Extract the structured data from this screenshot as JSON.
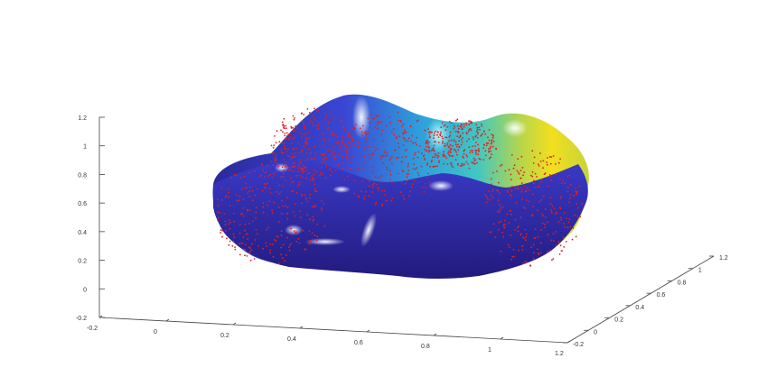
{
  "chart_data": {
    "type": "surface3d",
    "title": "",
    "xlabel": "",
    "ylabel": "",
    "zlabel": "",
    "grid": false,
    "x_ticks": [
      "-0.2",
      "0",
      "0.2",
      "0.4",
      "0.6",
      "0.8",
      "1",
      "1.2"
    ],
    "y_ticks": [
      "-0.2",
      "0",
      "0.2",
      "0.4",
      "0.6",
      "0.8",
      "1",
      "1.2"
    ],
    "z_ticks": [
      "-0.2",
      "0",
      "0.2",
      "0.4",
      "0.6",
      "0.8",
      "1",
      "1.2"
    ],
    "xlim": [
      -0.2,
      1.2
    ],
    "ylim": [
      -0.2,
      1.2
    ],
    "zlim": [
      -0.2,
      1.2
    ],
    "surface": {
      "colormap": "parula-like",
      "colors": [
        "#2a1f8f",
        "#3b3fd8",
        "#2aa6e0",
        "#45d0c0",
        "#9bd35a",
        "#f5e21c"
      ],
      "description_of_shape": "closed bowl-shaped blob"
    },
    "markers": {
      "style": "dots",
      "color": "#e02020"
    }
  }
}
